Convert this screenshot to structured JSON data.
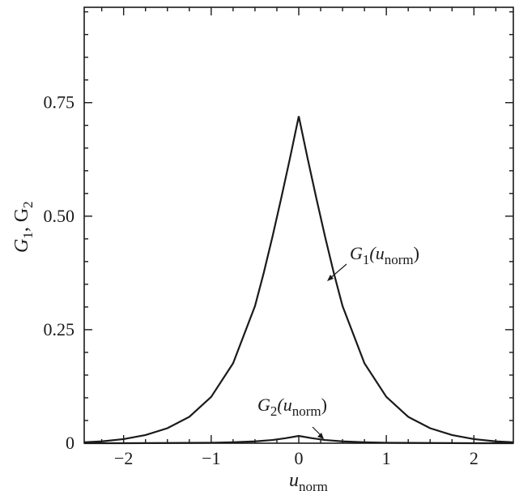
{
  "chart_data": {
    "type": "line",
    "title": "",
    "xlabel": "u",
    "xlabel_sub": "norm",
    "ylabel": "G",
    "ylabel_parts": [
      "G",
      "1",
      ", G",
      "2"
    ],
    "xlim": [
      -2.45,
      2.45
    ],
    "ylim": [
      0,
      0.96
    ],
    "x_ticks": [
      -2,
      -1,
      0,
      1,
      2
    ],
    "x_tick_labels": [
      "−2",
      "−1",
      "0",
      "1",
      "2"
    ],
    "y_ticks": [
      0,
      0.25,
      0.5,
      0.75
    ],
    "y_tick_labels": [
      "0",
      "0.25",
      "0.50",
      "0.75"
    ],
    "grid": false,
    "series": [
      {
        "name": "G1(unorm)",
        "label_parts": [
          "G",
          "1",
          "(u",
          "norm",
          ")"
        ],
        "x": [
          -2.45,
          -2.25,
          -2.0,
          -1.75,
          -1.5,
          -1.25,
          -1.0,
          -0.75,
          -0.5,
          -0.4,
          -0.3,
          -0.2,
          -0.1,
          0.0,
          0.1,
          0.2,
          0.3,
          0.4,
          0.5,
          0.75,
          1.0,
          1.25,
          1.5,
          1.75,
          2.0,
          2.25,
          2.45
        ],
        "y": [
          0.002,
          0.004,
          0.009,
          0.018,
          0.033,
          0.058,
          0.102,
          0.176,
          0.302,
          0.375,
          0.455,
          0.54,
          0.628,
          0.72,
          0.628,
          0.54,
          0.455,
          0.375,
          0.302,
          0.176,
          0.102,
          0.058,
          0.033,
          0.018,
          0.009,
          0.004,
          0.002
        ]
      },
      {
        "name": "G2(unorm)",
        "label_parts": [
          "G",
          "2",
          "(u",
          "norm",
          ")"
        ],
        "x": [
          -2.45,
          -2.0,
          -1.5,
          -1.0,
          -0.75,
          -0.5,
          -0.3,
          -0.15,
          0.0,
          0.15,
          0.3,
          0.5,
          0.75,
          1.0,
          1.5,
          2.0,
          2.45
        ],
        "y": [
          0.0,
          0.0,
          0.0005,
          0.001,
          0.002,
          0.004,
          0.007,
          0.011,
          0.016,
          0.011,
          0.007,
          0.004,
          0.002,
          0.001,
          0.0005,
          0.0,
          0.0
        ]
      }
    ]
  }
}
